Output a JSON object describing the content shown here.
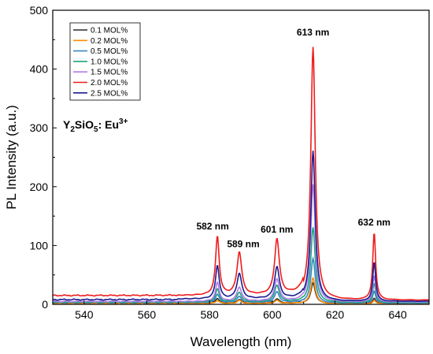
{
  "chart_data": {
    "type": "line",
    "xlabel": "Wavelength (nm)",
    "ylabel": "PL Intensity (a.u.)",
    "xlim": [
      530,
      650
    ],
    "ylim": [
      0,
      500
    ],
    "xticks": [
      540,
      560,
      580,
      600,
      620,
      640
    ],
    "yticks": [
      0,
      100,
      200,
      300,
      400,
      500
    ],
    "grid": false,
    "legend_position": "top-left",
    "compound_label": {
      "base": "Y",
      "sub1": "2",
      "mid": "SiO",
      "sub2": "5",
      "tail": ": Eu",
      "sup": "3+"
    },
    "peaks": [
      {
        "wavelength": 582.5,
        "label": "582 nm"
      },
      {
        "wavelength": 589.5,
        "label": "589 nm"
      },
      {
        "wavelength": 601.5,
        "label": "601 nm"
      },
      {
        "wavelength": 613,
        "label": "613 nm"
      },
      {
        "wavelength": 632.5,
        "label": "632 nm"
      }
    ],
    "series": [
      {
        "name": "0.1 MOL%",
        "color": "#2b2b2b",
        "baseline": [
          2,
          2,
          1.5
        ],
        "peaks": [
          8,
          6,
          7,
          35,
          9
        ]
      },
      {
        "name": "0.2 MOL%",
        "color": "#ff8c00",
        "baseline": [
          1.5,
          1.5,
          1
        ],
        "peaks": [
          5,
          5,
          5,
          44,
          6
        ]
      },
      {
        "name": "0.5 MOL%",
        "color": "#3b87c4",
        "baseline": [
          3,
          3,
          2
        ],
        "peaks": [
          14,
          10,
          18,
          76,
          21
        ]
      },
      {
        "name": "1.0 MOL%",
        "color": "#1fa37e",
        "baseline": [
          4,
          4,
          3
        ],
        "peaks": [
          22,
          16,
          28,
          128,
          33
        ]
      },
      {
        "name": "1.5 MOL%",
        "color": "#b07ee8",
        "baseline": [
          5,
          5,
          4
        ],
        "peaks": [
          32,
          24,
          38,
          200,
          45
        ]
      },
      {
        "name": "2.0 MOL%",
        "color": "#ee1c1c",
        "baseline": [
          15,
          15,
          7
        ],
        "peaks": [
          100,
          73,
          95,
          430,
          115
        ]
      },
      {
        "name": "2.5 MOL%",
        "color": "#1c1c8f",
        "baseline": [
          8,
          9,
          5
        ],
        "peaks": [
          57,
          43,
          54,
          256,
          67
        ]
      }
    ]
  }
}
